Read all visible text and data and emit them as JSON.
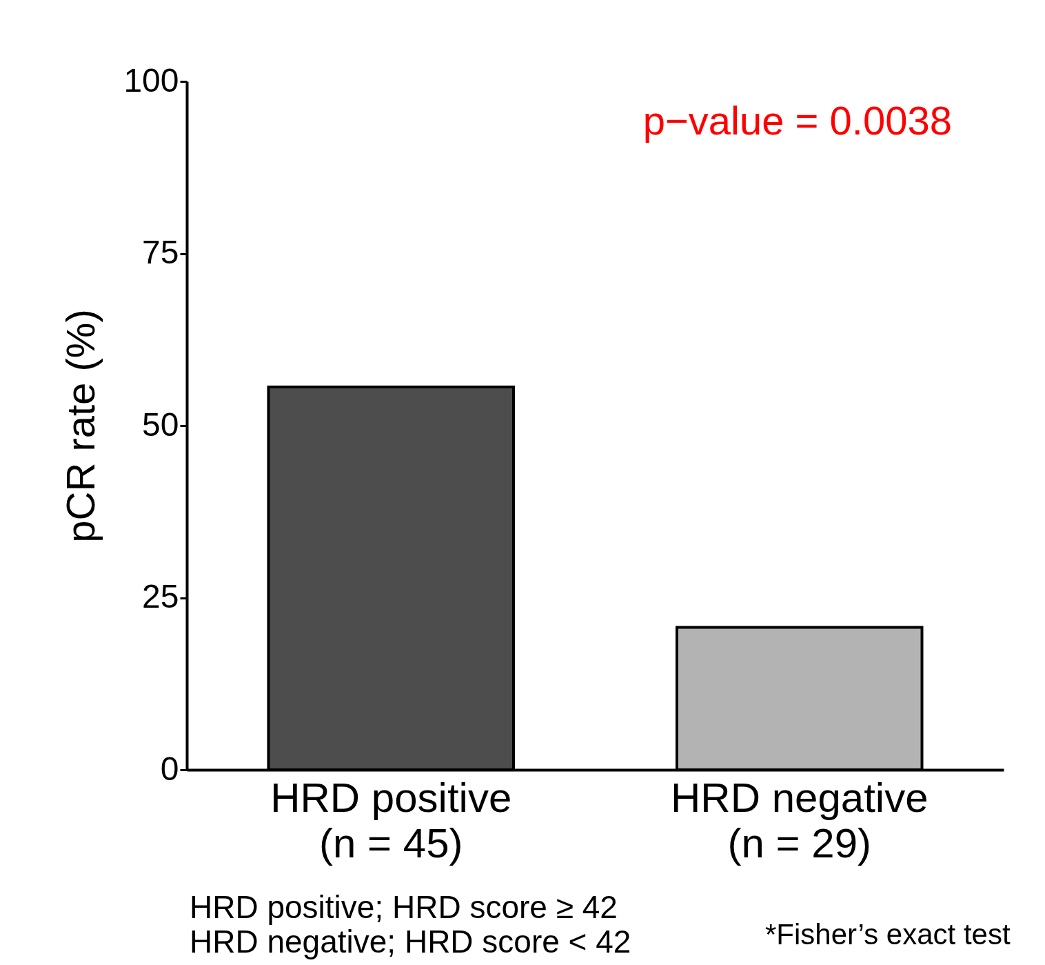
{
  "chart_data": {
    "type": "bar",
    "ylabel": "pCR rate (%)",
    "categories": [
      "HRD positive\n(n = 45)",
      "HRD negative\n(n = 29)"
    ],
    "values": [
      55.6,
      20.7
    ],
    "colors": [
      "#4d4d4d",
      "#b3b3b3"
    ],
    "ylim": [
      0,
      100
    ],
    "yticks": [
      0,
      25,
      50,
      75,
      100
    ],
    "grid": false,
    "legend": false,
    "annotations": [
      "p−value = 0.0038",
      "HRD positive; HRD score ≥ 42\nHRD negative; HRD score < 42",
      "*Fisher’s exact test"
    ]
  }
}
